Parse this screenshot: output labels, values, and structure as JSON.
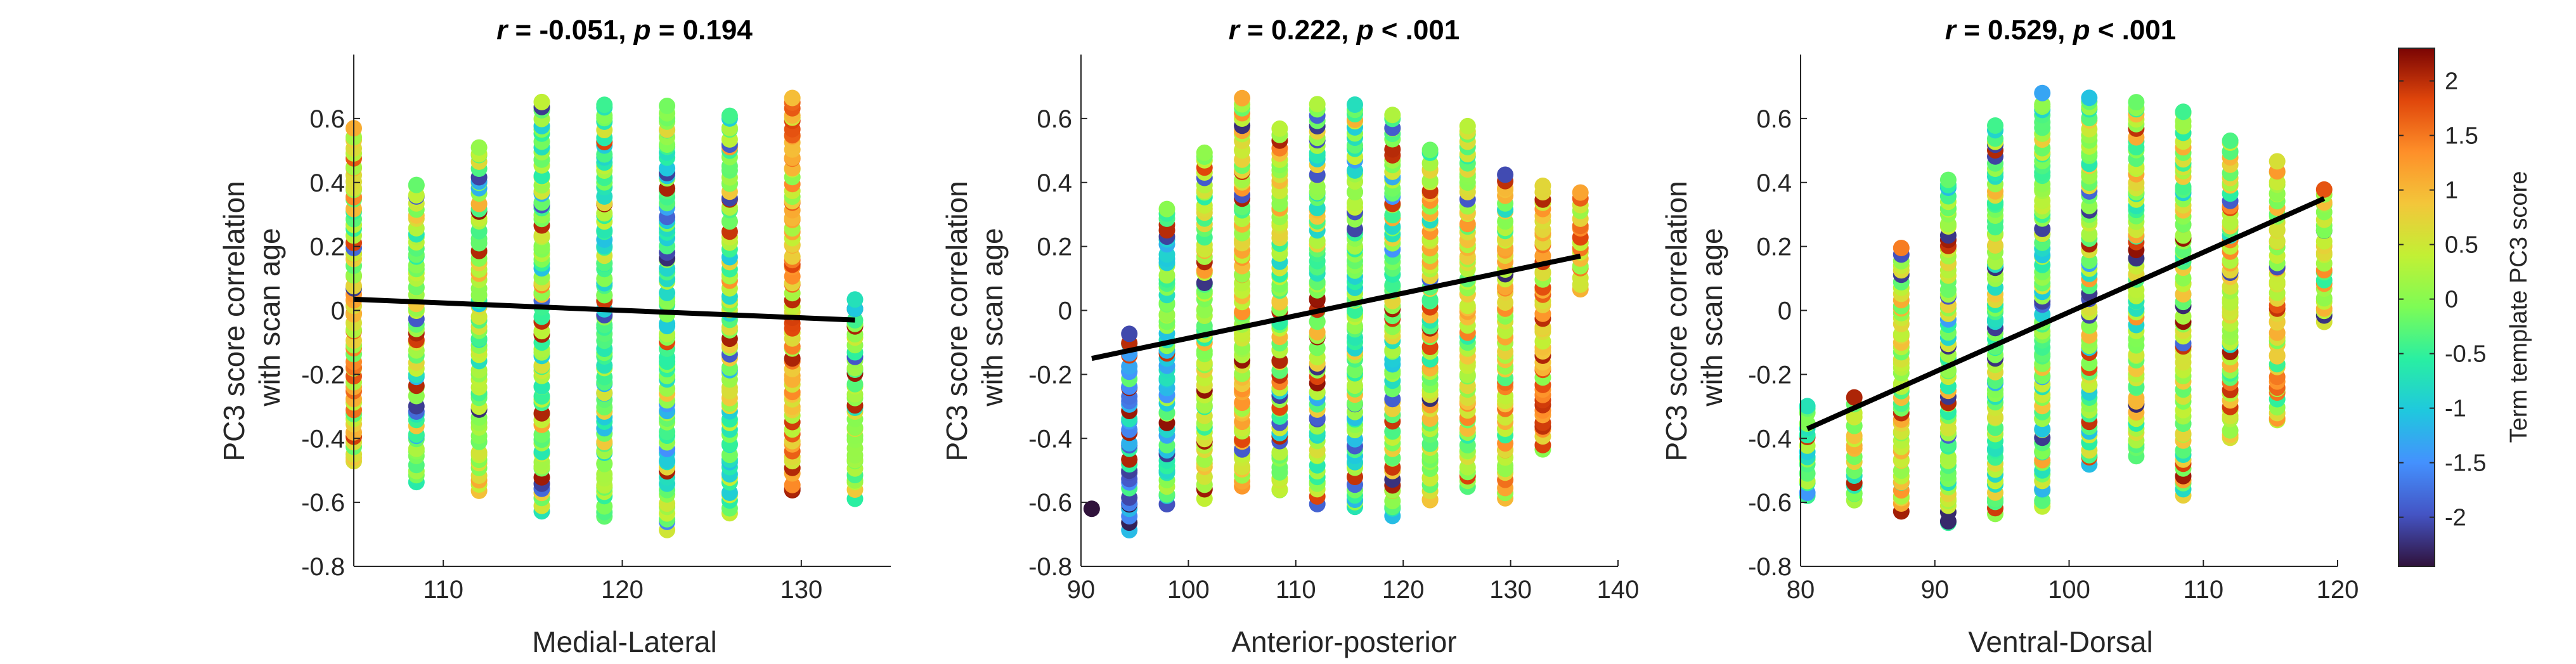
{
  "chart_data": [
    {
      "type": "scatter",
      "title": "r = -0.051, p = 0.194",
      "title_parts": {
        "r_sym": "r",
        "r_text": " = -0.051, ",
        "p_sym": "p",
        "p_text": " = 0.194"
      },
      "xlabel": "Medial-Lateral",
      "ylabel_lines": [
        "PC3 score correlation",
        "with scan age"
      ],
      "xlim": [
        105,
        135
      ],
      "ylim": [
        -0.8,
        0.8
      ],
      "xticks": [
        110,
        120,
        130
      ],
      "yticks": [
        -0.8,
        -0.6,
        -0.4,
        -0.2,
        0,
        0.2,
        0.4,
        0.6
      ],
      "column_x": [
        105,
        108.5,
        112,
        115.5,
        119,
        122.5,
        126,
        129.5,
        133
      ],
      "column_ranges": [
        [
          -0.48,
          0.56
        ],
        [
          -0.53,
          0.4
        ],
        [
          -0.57,
          0.51
        ],
        [
          -0.62,
          0.65
        ],
        [
          -0.64,
          0.65
        ],
        [
          -0.68,
          0.64
        ],
        [
          -0.63,
          0.61
        ],
        [
          -0.57,
          0.67
        ],
        [
          -0.58,
          0.03
        ]
      ],
      "column_color_means": [
        0.7,
        0.0,
        0.0,
        0.0,
        -0.3,
        -0.3,
        0.0,
        1.0,
        0.0
      ],
      "trend_line": {
        "x": [
          105,
          133
        ],
        "y": [
          0.035,
          -0.03
        ]
      }
    },
    {
      "type": "scatter",
      "title": "r = 0.222, p < .001",
      "title_parts": {
        "r_sym": "r",
        "r_text": " = 0.222, ",
        "p_sym": "p",
        "p_text": " < .001"
      },
      "xlabel": "Anterior-posterior",
      "ylabel_lines": [
        "PC3 score correlation",
        "with scan age"
      ],
      "xlim": [
        90,
        140
      ],
      "ylim": [
        -0.8,
        0.8
      ],
      "xticks": [
        90,
        100,
        110,
        120,
        130,
        140
      ],
      "yticks": [
        -0.8,
        -0.6,
        -0.4,
        -0.2,
        0,
        0.2,
        0.4,
        0.6
      ],
      "column_x": [
        91,
        94.5,
        98,
        101.5,
        105,
        108.5,
        112,
        115.5,
        119,
        122.5,
        126,
        129.5,
        133,
        136.5
      ],
      "column_ranges": [
        [
          -0.62,
          -0.62
        ],
        [
          -0.68,
          -0.08
        ],
        [
          -0.6,
          0.32
        ],
        [
          -0.58,
          0.5
        ],
        [
          -0.55,
          0.66
        ],
        [
          -0.57,
          0.56
        ],
        [
          -0.6,
          0.65
        ],
        [
          -0.62,
          0.65
        ],
        [
          -0.64,
          0.61
        ],
        [
          -0.6,
          0.5
        ],
        [
          -0.55,
          0.58
        ],
        [
          -0.58,
          0.42
        ],
        [
          -0.43,
          0.38
        ],
        [
          0.07,
          0.36
        ]
      ],
      "column_color_means": [
        -2.3,
        -1.4,
        -0.5,
        0.2,
        0.6,
        0.2,
        0.0,
        -0.2,
        -0.1,
        0.3,
        0.4,
        0.7,
        1.0,
        0.8
      ],
      "trend_line": {
        "x": [
          91,
          136.5
        ],
        "y": [
          -0.15,
          0.17
        ]
      }
    },
    {
      "type": "scatter",
      "title": "r = 0.529, p < .001",
      "title_parts": {
        "r_sym": "r",
        "r_text": " = 0.529, ",
        "p_sym": "p",
        "p_text": " < .001"
      },
      "xlabel": "Ventral-Dorsal",
      "ylabel_lines": [
        "PC3 score correlation",
        "with scan age"
      ],
      "xlim": [
        80,
        120
      ],
      "ylim": [
        -0.8,
        0.8
      ],
      "xticks": [
        80,
        90,
        100,
        110,
        120
      ],
      "yticks": [
        -0.8,
        -0.6,
        -0.4,
        -0.2,
        0,
        0.2,
        0.4,
        0.6
      ],
      "column_x": [
        80.5,
        84,
        87.5,
        91,
        94.5,
        98,
        101.5,
        105,
        108.5,
        112,
        115.5,
        119
      ],
      "column_ranges": [
        [
          -0.58,
          -0.29
        ],
        [
          -0.6,
          -0.28
        ],
        [
          -0.63,
          0.19
        ],
        [
          -0.67,
          0.41
        ],
        [
          -0.63,
          0.58
        ],
        [
          -0.62,
          0.67
        ],
        [
          -0.48,
          0.67
        ],
        [
          -0.45,
          0.66
        ],
        [
          -0.58,
          0.63
        ],
        [
          -0.4,
          0.54
        ],
        [
          -0.35,
          0.46
        ],
        [
          -0.04,
          0.38
        ]
      ],
      "column_color_means": [
        -0.2,
        0.3,
        0.5,
        0.0,
        0.0,
        -0.1,
        0.0,
        0.1,
        0.2,
        0.3,
        0.6,
        0.6
      ],
      "trend_line": {
        "x": [
          80.5,
          119
        ],
        "y": [
          -0.37,
          0.35
        ]
      }
    }
  ],
  "colorbar": {
    "label": "Term template PC3 score",
    "range": [
      -2.45,
      2.3
    ],
    "ticks": [
      -2,
      -1.5,
      -1,
      -0.5,
      0,
      0.5,
      1,
      1.5,
      2
    ],
    "colormap": "turbo"
  }
}
